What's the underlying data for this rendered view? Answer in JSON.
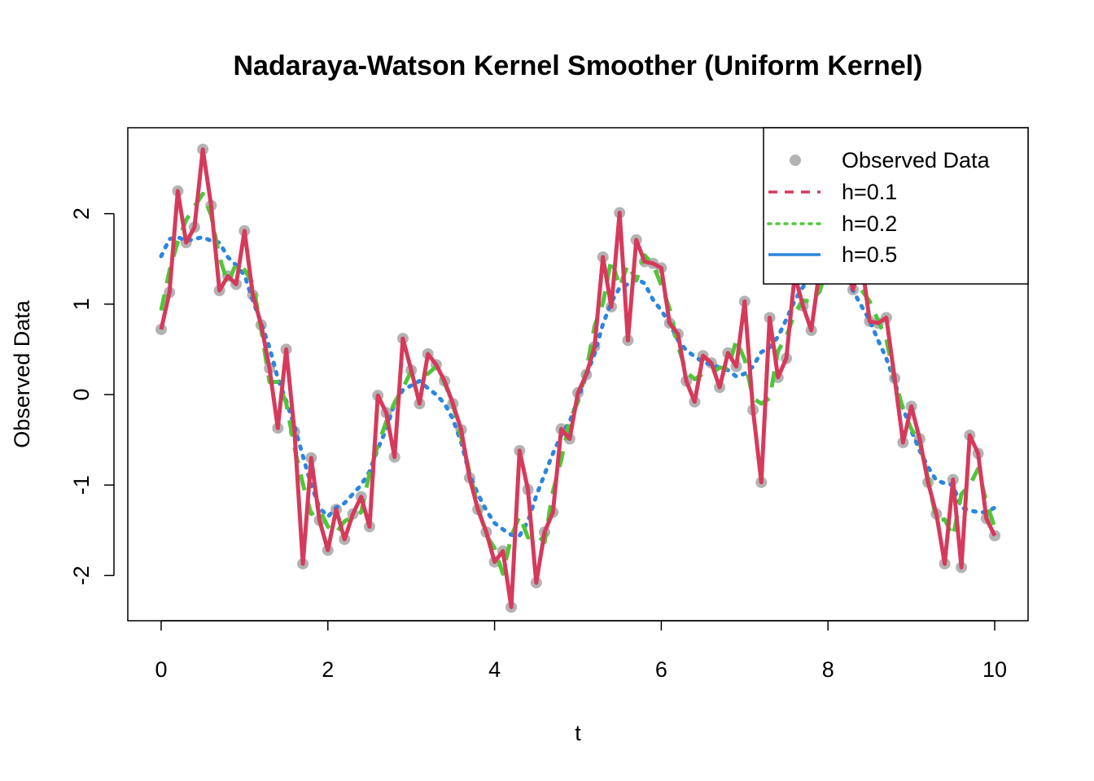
{
  "chart_data": {
    "type": "line",
    "title": "Nadaraya-Watson Kernel Smoother (Uniform Kernel)",
    "xlabel": "t",
    "ylabel": "Observed Data",
    "xlim": [
      -0.4,
      10.4
    ],
    "ylim": [
      -2.5,
      2.95
    ],
    "xticks": [
      0,
      2,
      4,
      6,
      8,
      10
    ],
    "yticks": [
      -2,
      -1,
      0,
      1,
      2
    ],
    "legend_position": "top-right",
    "colors": {
      "observed": "#b3b3b3",
      "h01": "#d63a5b",
      "h02": "#4fc63a",
      "h05": "#2a86df"
    },
    "legend": [
      {
        "label": "Observed Data",
        "kind": "point",
        "color": "#b3b3b3"
      },
      {
        "label": "h=0.1",
        "kind": "dashed",
        "color": "#d63a5b"
      },
      {
        "label": "h=0.2",
        "kind": "dotted",
        "color": "#4fc63a"
      },
      {
        "label": "h=0.5",
        "kind": "solid",
        "color": "#2a86df"
      }
    ],
    "x": [
      0.0,
      0.1,
      0.2,
      0.3,
      0.4,
      0.5,
      0.6,
      0.7,
      0.8,
      0.9,
      1.0,
      1.1,
      1.2,
      1.3,
      1.4,
      1.5,
      1.6,
      1.7,
      1.8,
      1.9,
      2.0,
      2.1,
      2.2,
      2.3,
      2.4,
      2.5,
      2.6,
      2.7,
      2.8,
      2.9,
      3.0,
      3.1,
      3.2,
      3.3,
      3.4,
      3.5,
      3.6,
      3.7,
      3.8,
      3.9,
      4.0,
      4.1,
      4.2,
      4.3,
      4.4,
      4.5,
      4.6,
      4.7,
      4.8,
      4.9,
      5.0,
      5.1,
      5.2,
      5.3,
      5.4,
      5.5,
      5.6,
      5.7,
      5.8,
      5.9,
      6.0,
      6.1,
      6.2,
      6.3,
      6.4,
      6.5,
      6.6,
      6.7,
      6.8,
      6.9,
      7.0,
      7.1,
      7.2,
      7.3,
      7.4,
      7.5,
      7.6,
      7.7,
      7.8,
      7.9,
      8.0,
      8.1,
      8.2,
      8.3,
      8.4,
      8.5,
      8.6,
      8.7,
      8.8,
      8.9,
      9.0,
      9.1,
      9.2,
      9.3,
      9.4,
      9.5,
      9.6,
      9.7,
      9.8,
      9.9,
      10.0
    ],
    "series": [
      {
        "name": "Observed Data",
        "values": [
          0.72,
          1.13,
          2.25,
          1.68,
          1.85,
          2.71,
          2.09,
          1.15,
          1.31,
          1.22,
          1.81,
          1.1,
          0.77,
          0.29,
          -0.37,
          0.5,
          -0.41,
          -1.87,
          -0.7,
          -1.39,
          -1.72,
          -1.27,
          -1.6,
          -1.32,
          -1.13,
          -1.46,
          -0.01,
          -0.2,
          -0.69,
          0.62,
          0.27,
          -0.1,
          0.45,
          0.33,
          0.15,
          -0.1,
          -0.39,
          -0.92,
          -1.27,
          -1.52,
          -1.85,
          -1.73,
          -2.35,
          -0.62,
          -1.05,
          -2.08,
          -1.52,
          -1.3,
          -0.38,
          -0.49,
          0.02,
          0.22,
          0.53,
          1.52,
          0.97,
          2.01,
          0.6,
          1.71,
          1.47,
          1.45,
          1.4,
          0.79,
          0.67,
          0.15,
          -0.08,
          0.43,
          0.35,
          0.08,
          0.46,
          0.31,
          1.03,
          -0.17,
          -0.97,
          0.85,
          0.19,
          0.4,
          1.32,
          0.98,
          0.71,
          1.39,
          1.34,
          1.58,
          1.5,
          1.16,
          1.5,
          0.81,
          0.79,
          0.85,
          0.18,
          -0.53,
          -0.13,
          -0.49,
          -0.97,
          -1.32,
          -1.87,
          -0.94,
          -1.91,
          -0.45,
          -0.65,
          -1.37,
          -1.56
        ]
      },
      {
        "name": "h=0.1",
        "values": [
          0.72,
          1.13,
          2.25,
          1.68,
          1.85,
          2.71,
          2.09,
          1.15,
          1.31,
          1.22,
          1.81,
          1.1,
          0.77,
          0.29,
          -0.37,
          0.5,
          -0.41,
          -1.87,
          -0.7,
          -1.39,
          -1.72,
          -1.27,
          -1.6,
          -1.32,
          -1.13,
          -1.46,
          -0.01,
          -0.2,
          -0.69,
          0.62,
          0.27,
          -0.1,
          0.45,
          0.33,
          0.15,
          -0.1,
          -0.39,
          -0.92,
          -1.27,
          -1.52,
          -1.85,
          -1.73,
          -2.35,
          -0.62,
          -1.05,
          -2.08,
          -1.52,
          -1.3,
          -0.38,
          -0.49,
          0.02,
          0.22,
          0.53,
          1.52,
          0.97,
          2.01,
          0.6,
          1.71,
          1.47,
          1.45,
          1.4,
          0.79,
          0.67,
          0.15,
          -0.08,
          0.43,
          0.35,
          0.08,
          0.46,
          0.31,
          1.03,
          -0.17,
          -0.97,
          0.85,
          0.19,
          0.4,
          1.32,
          0.98,
          0.71,
          1.39,
          1.34,
          1.58,
          1.5,
          1.16,
          1.5,
          0.81,
          0.79,
          0.85,
          0.18,
          -0.53,
          -0.13,
          -0.49,
          -0.97,
          -1.32,
          -1.87,
          -0.94,
          -1.91,
          -0.45,
          -0.65,
          -1.37,
          -1.56
        ]
      },
      {
        "name": "h=0.2",
        "values": [
          0.93,
          1.37,
          1.69,
          1.93,
          2.08,
          2.22,
          1.98,
          1.52,
          1.23,
          1.45,
          1.38,
          1.23,
          0.72,
          0.14,
          0.14,
          -0.09,
          -0.59,
          -0.99,
          -1.32,
          -1.27,
          -1.46,
          -1.53,
          -1.4,
          -1.35,
          -1.3,
          -0.87,
          -0.56,
          -0.3,
          -0.09,
          0.07,
          0.26,
          0.21,
          0.23,
          0.31,
          0.13,
          -0.11,
          -0.47,
          -0.86,
          -1.24,
          -1.55,
          -1.7,
          -1.98,
          -1.57,
          -1.34,
          -1.58,
          -1.55,
          -1.63,
          -1.07,
          -0.72,
          -0.28,
          -0.08,
          0.26,
          0.76,
          1.01,
          1.5,
          1.19,
          1.44,
          1.26,
          1.54,
          1.44,
          1.21,
          0.95,
          0.54,
          0.25,
          0.17,
          0.23,
          0.23,
          0.3,
          0.28,
          0.6,
          0.39,
          -0.04,
          -0.1,
          -0.04,
          0.48,
          0.64,
          0.9,
          1.04,
          1.03,
          1.14,
          1.44,
          1.47,
          1.41,
          1.39,
          1.16,
          1.03,
          0.82,
          0.61,
          0.17,
          -0.16,
          -0.38,
          -0.53,
          -0.93,
          -1.39,
          -1.38,
          -1.57,
          -1.1,
          -1.0,
          -0.82,
          -1.19,
          -1.47
        ]
      },
      {
        "name": "h=0.5",
        "values": [
          1.53,
          1.72,
          1.74,
          1.7,
          1.72,
          1.74,
          1.7,
          1.68,
          1.52,
          1.43,
          1.32,
          1.04,
          0.79,
          0.52,
          0.18,
          -0.07,
          -0.35,
          -0.68,
          -1.0,
          -1.25,
          -1.35,
          -1.25,
          -1.2,
          -1.1,
          -1.0,
          -0.85,
          -0.6,
          -0.38,
          -0.1,
          0.05,
          0.1,
          0.15,
          0.07,
          0.0,
          -0.1,
          -0.27,
          -0.53,
          -0.88,
          -1.1,
          -1.28,
          -1.42,
          -1.49,
          -1.55,
          -1.56,
          -1.4,
          -1.12,
          -0.88,
          -0.65,
          -0.45,
          -0.3,
          -0.05,
          0.21,
          0.45,
          0.78,
          1.02,
          1.18,
          1.22,
          1.28,
          1.23,
          1.05,
          0.93,
          0.79,
          0.6,
          0.49,
          0.42,
          0.36,
          0.33,
          0.3,
          0.27,
          0.2,
          0.23,
          0.31,
          0.47,
          0.52,
          0.64,
          0.83,
          1.04,
          1.19,
          1.32,
          1.38,
          1.37,
          1.39,
          1.31,
          1.15,
          0.98,
          0.82,
          0.6,
          0.4,
          0.14,
          -0.15,
          -0.4,
          -0.62,
          -0.8,
          -0.95,
          -0.98,
          -1.0,
          -1.25,
          -1.28,
          -1.3,
          -1.3,
          -1.25
        ]
      }
    ]
  }
}
